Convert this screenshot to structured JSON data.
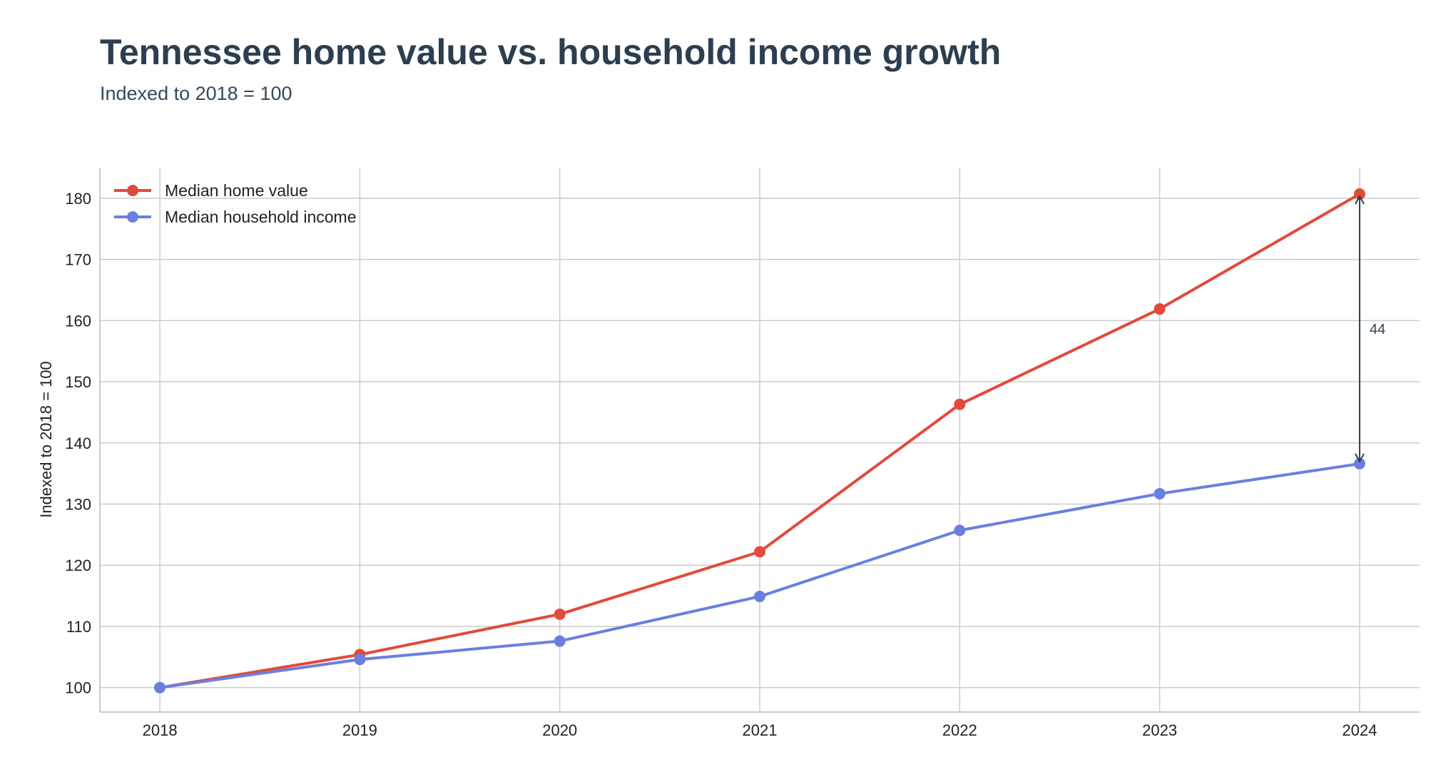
{
  "header": {
    "title": "Tennessee home value vs. household income growth",
    "subtitle": "Indexed to 2018 = 100"
  },
  "chart_data": {
    "type": "line",
    "title": "Tennessee home value vs. household income growth",
    "subtitle": "Indexed to 2018 = 100",
    "xlabel": "",
    "ylabel": "Indexed to 2018 = 100",
    "x": [
      2018,
      2019,
      2020,
      2021,
      2022,
      2023,
      2024
    ],
    "xlim": [
      2017.7,
      2024.3
    ],
    "ylim": [
      96,
      185
    ],
    "yticks": [
      100,
      110,
      120,
      130,
      140,
      150,
      160,
      170,
      180
    ],
    "grid": true,
    "legend": "top-left",
    "series": [
      {
        "name": "Median home value",
        "color": "#e24a3b",
        "values": [
          100,
          105.4,
          112.0,
          122.2,
          146.3,
          161.9,
          180.7
        ]
      },
      {
        "name": "Median household income",
        "color": "#6a7fe0",
        "values": [
          100,
          104.6,
          107.6,
          114.9,
          125.7,
          131.7,
          136.6
        ]
      }
    ],
    "annotations": [
      {
        "text": "44",
        "x": 2024,
        "y_from": 136.6,
        "y_to": 180.7,
        "color": "#2c3e50"
      }
    ]
  }
}
